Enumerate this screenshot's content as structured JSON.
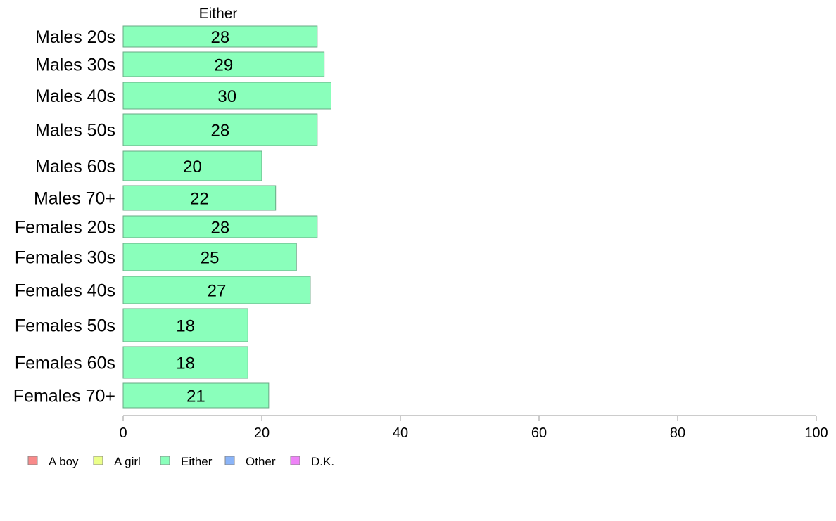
{
  "chart_data": {
    "type": "bar",
    "orientation": "horizontal",
    "panel_title": "Either",
    "categories": [
      "Males 20s",
      "Males 30s",
      "Males 40s",
      "Males 50s",
      "Males 60s",
      "Males 70+",
      "Females 20s",
      "Females 30s",
      "Females 40s",
      "Females 50s",
      "Females 60s",
      "Females 70+"
    ],
    "series": [
      {
        "name": "Either",
        "color": "#8affbb",
        "values": [
          28,
          29,
          30,
          28,
          20,
          22,
          28,
          25,
          27,
          18,
          18,
          21
        ]
      }
    ],
    "value_labels": [
      "28",
      "29",
      "30",
      "28",
      "20",
      "22",
      "28",
      "25",
      "27",
      "18",
      "18",
      "21"
    ],
    "xlim": [
      0,
      100
    ],
    "xticks": [
      0,
      20,
      40,
      60,
      80,
      100
    ],
    "xtick_labels": [
      "0",
      "20",
      "40",
      "60",
      "80",
      "100"
    ],
    "grid": false,
    "legend": {
      "position": "bottom-left",
      "entries": [
        {
          "label": "A boy",
          "color": "#f88a8a"
        },
        {
          "label": "A girl",
          "color": "#ebff8a"
        },
        {
          "label": "Either",
          "color": "#8affbb"
        },
        {
          "label": "Other",
          "color": "#8ab4f8"
        },
        {
          "label": "D.K.",
          "color": "#ee83f7"
        }
      ]
    }
  }
}
